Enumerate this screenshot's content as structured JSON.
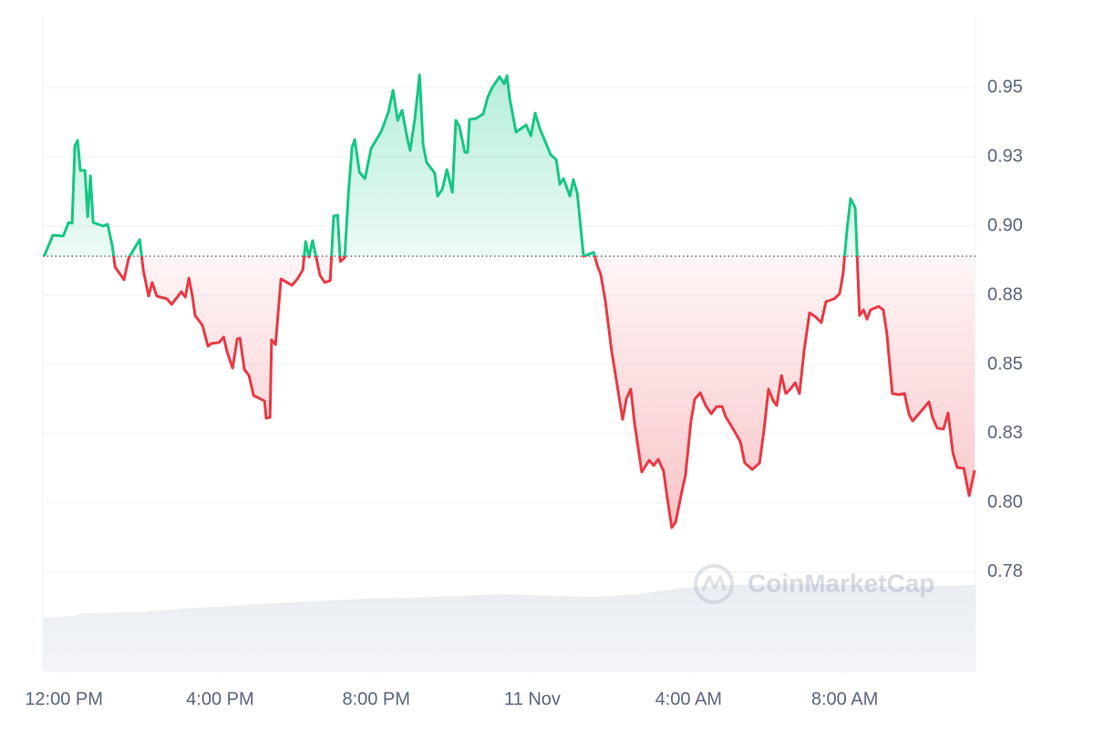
{
  "chart_data": {
    "type": "baseline",
    "watermark": "CoinMarketCap",
    "baseline": 0.8891,
    "color_up": "#16c784",
    "color_down": "#ea3943",
    "grid": true,
    "xlim": [
      11.46,
      35.35
    ],
    "ylim": [
      0.7391,
      0.9757
    ],
    "xticks": [
      {
        "value": 12,
        "label": "12:00 PM"
      },
      {
        "value": 16,
        "label": "4:00 PM"
      },
      {
        "value": 20,
        "label": "8:00 PM"
      },
      {
        "value": 24,
        "label": "11 Nov"
      },
      {
        "value": 28,
        "label": "4:00 AM"
      },
      {
        "value": 32,
        "label": "8:00 AM"
      }
    ],
    "yticks": [
      {
        "value": 0.775,
        "label": "0.78"
      },
      {
        "value": 0.8,
        "label": "0.80"
      },
      {
        "value": 0.825,
        "label": "0.83"
      },
      0.85,
      {
        "value": 0.875,
        "label": "0.88"
      },
      {
        "value": 0.9,
        "label": "0.90"
      },
      {
        "value": 0.925,
        "label": "0.93"
      },
      0.95
    ],
    "x": [
      11.49,
      11.72,
      11.98,
      12.12,
      12.21,
      12.28,
      12.35,
      12.42,
      12.54,
      12.61,
      12.68,
      12.75,
      13.0,
      13.12,
      13.24,
      13.31,
      13.54,
      13.66,
      13.94,
      14.03,
      14.17,
      14.26,
      14.38,
      14.64,
      14.76,
      15.01,
      15.11,
      15.2,
      15.29,
      15.36,
      15.55,
      15.69,
      15.78,
      15.97,
      16.09,
      16.18,
      16.32,
      16.44,
      16.51,
      16.62,
      16.74,
      16.86,
      17.14,
      17.18,
      17.28,
      17.32,
      17.42,
      17.56,
      17.84,
      17.98,
      18.12,
      18.19,
      18.28,
      18.37,
      18.56,
      18.68,
      18.82,
      18.91,
      19.01,
      19.08,
      19.19,
      19.29,
      19.38,
      19.45,
      19.57,
      19.71,
      19.87,
      20.13,
      20.31,
      20.43,
      20.55,
      20.66,
      20.8,
      20.87,
      20.99,
      21.11,
      21.2,
      21.29,
      21.5,
      21.57,
      21.69,
      21.81,
      21.95,
      22.04,
      22.13,
      22.27,
      22.34,
      22.39,
      22.55,
      22.74,
      22.86,
      22.97,
      23.16,
      23.28,
      23.35,
      23.42,
      23.58,
      23.84,
      23.96,
      24.07,
      24.19,
      24.47,
      24.61,
      24.7,
      24.8,
      24.96,
      25.05,
      25.15,
      25.31,
      25.57,
      25.66,
      25.75,
      25.87,
      25.94,
      26.03,
      26.17,
      26.31,
      26.41,
      26.52,
      26.62,
      26.8,
      26.99,
      27.11,
      27.22,
      27.36,
      27.46,
      27.57,
      27.67,
      27.83,
      27.92,
      28.06,
      28.16,
      28.3,
      28.44,
      28.58,
      28.72,
      28.86,
      28.95,
      29.19,
      29.33,
      29.44,
      29.63,
      29.82,
      29.93,
      30.05,
      30.17,
      30.26,
      30.38,
      30.49,
      30.61,
      30.73,
      30.84,
      30.96,
      31.1,
      31.26,
      31.4,
      31.52,
      31.73,
      31.87,
      31.96,
      32.06,
      32.15,
      32.27,
      32.38,
      32.48,
      32.57,
      32.66,
      32.87,
      32.99,
      33.08,
      33.22,
      33.39,
      33.53,
      33.65,
      33.74,
      34.04,
      34.16,
      34.25,
      34.37,
      34.53,
      34.65,
      34.77,
      34.88,
      35.05,
      35.19,
      35.33
    ],
    "values": [
      0.8891,
      0.8967,
      0.8964,
      0.9013,
      0.901,
      0.9289,
      0.9309,
      0.9201,
      0.9201,
      0.9033,
      0.9181,
      0.9013,
      0.9,
      0.9006,
      0.8928,
      0.8852,
      0.8806,
      0.8885,
      0.8951,
      0.8842,
      0.8747,
      0.8796,
      0.8747,
      0.8737,
      0.8717,
      0.8763,
      0.8743,
      0.8812,
      0.8747,
      0.8677,
      0.8641,
      0.8566,
      0.8576,
      0.8579,
      0.8599,
      0.8546,
      0.8487,
      0.8592,
      0.8595,
      0.8483,
      0.846,
      0.8388,
      0.8368,
      0.8306,
      0.8309,
      0.8589,
      0.8572,
      0.8809,
      0.8786,
      0.8809,
      0.8842,
      0.8944,
      0.8888,
      0.8947,
      0.8822,
      0.8796,
      0.8803,
      0.9036,
      0.9039,
      0.8872,
      0.8885,
      0.9122,
      0.9283,
      0.9312,
      0.9194,
      0.9171,
      0.928,
      0.9342,
      0.9411,
      0.949,
      0.9382,
      0.9418,
      0.9312,
      0.9273,
      0.9388,
      0.9546,
      0.9293,
      0.923,
      0.9191,
      0.9108,
      0.9132,
      0.9204,
      0.9122,
      0.9382,
      0.9359,
      0.9266,
      0.9266,
      0.9385,
      0.9388,
      0.9405,
      0.9467,
      0.95,
      0.9539,
      0.9513,
      0.9543,
      0.9461,
      0.9339,
      0.9365,
      0.9326,
      0.9408,
      0.9352,
      0.9257,
      0.924,
      0.9151,
      0.9171,
      0.9108,
      0.9168,
      0.9118,
      0.8891,
      0.8905,
      0.8858,
      0.8826,
      0.8727,
      0.8648,
      0.8549,
      0.8427,
      0.8302,
      0.8378,
      0.8411,
      0.8283,
      0.8112,
      0.8154,
      0.8135,
      0.8158,
      0.8115,
      0.8013,
      0.7911,
      0.7931,
      0.8043,
      0.8098,
      0.8293,
      0.8375,
      0.8398,
      0.8352,
      0.8322,
      0.8348,
      0.8348,
      0.8312,
      0.8256,
      0.822,
      0.8145,
      0.8121,
      0.8145,
      0.826,
      0.8411,
      0.8368,
      0.8352,
      0.846,
      0.8395,
      0.8411,
      0.8434,
      0.8395,
      0.8549,
      0.8687,
      0.8671,
      0.8651,
      0.8727,
      0.8737,
      0.8756,
      0.8829,
      0.8987,
      0.9099,
      0.9066,
      0.8677,
      0.8697,
      0.8664,
      0.8697,
      0.871,
      0.8697,
      0.8612,
      0.8395,
      0.8391,
      0.8395,
      0.8319,
      0.8296,
      0.8345,
      0.8365,
      0.8309,
      0.827,
      0.8267,
      0.8325,
      0.8181,
      0.8128,
      0.8125,
      0.8026,
      0.8118
    ]
  }
}
